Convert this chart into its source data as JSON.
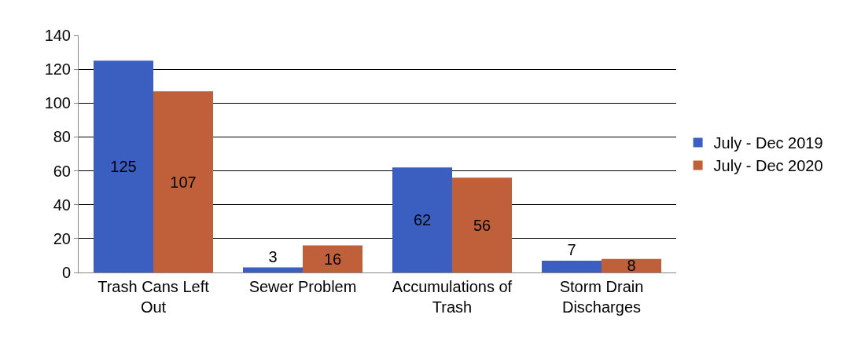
{
  "chart_data": {
    "type": "bar",
    "categories": [
      "Trash Cans Left Out",
      "Sewer Problem",
      "Accumulations of Trash",
      "Storm Drain Discharges"
    ],
    "series": [
      {
        "name": "July - Dec 2019",
        "color": "#3a5fc0",
        "values": [
          125,
          3,
          62,
          7
        ]
      },
      {
        "name": "July - Dec 2020",
        "color": "#c0603a",
        "values": [
          107,
          16,
          56,
          8
        ]
      }
    ],
    "ylim": [
      0,
      140
    ],
    "yticks": [
      0,
      20,
      40,
      60,
      80,
      100,
      120,
      140
    ],
    "grid": "y",
    "legend": "right",
    "data_labels": true
  }
}
